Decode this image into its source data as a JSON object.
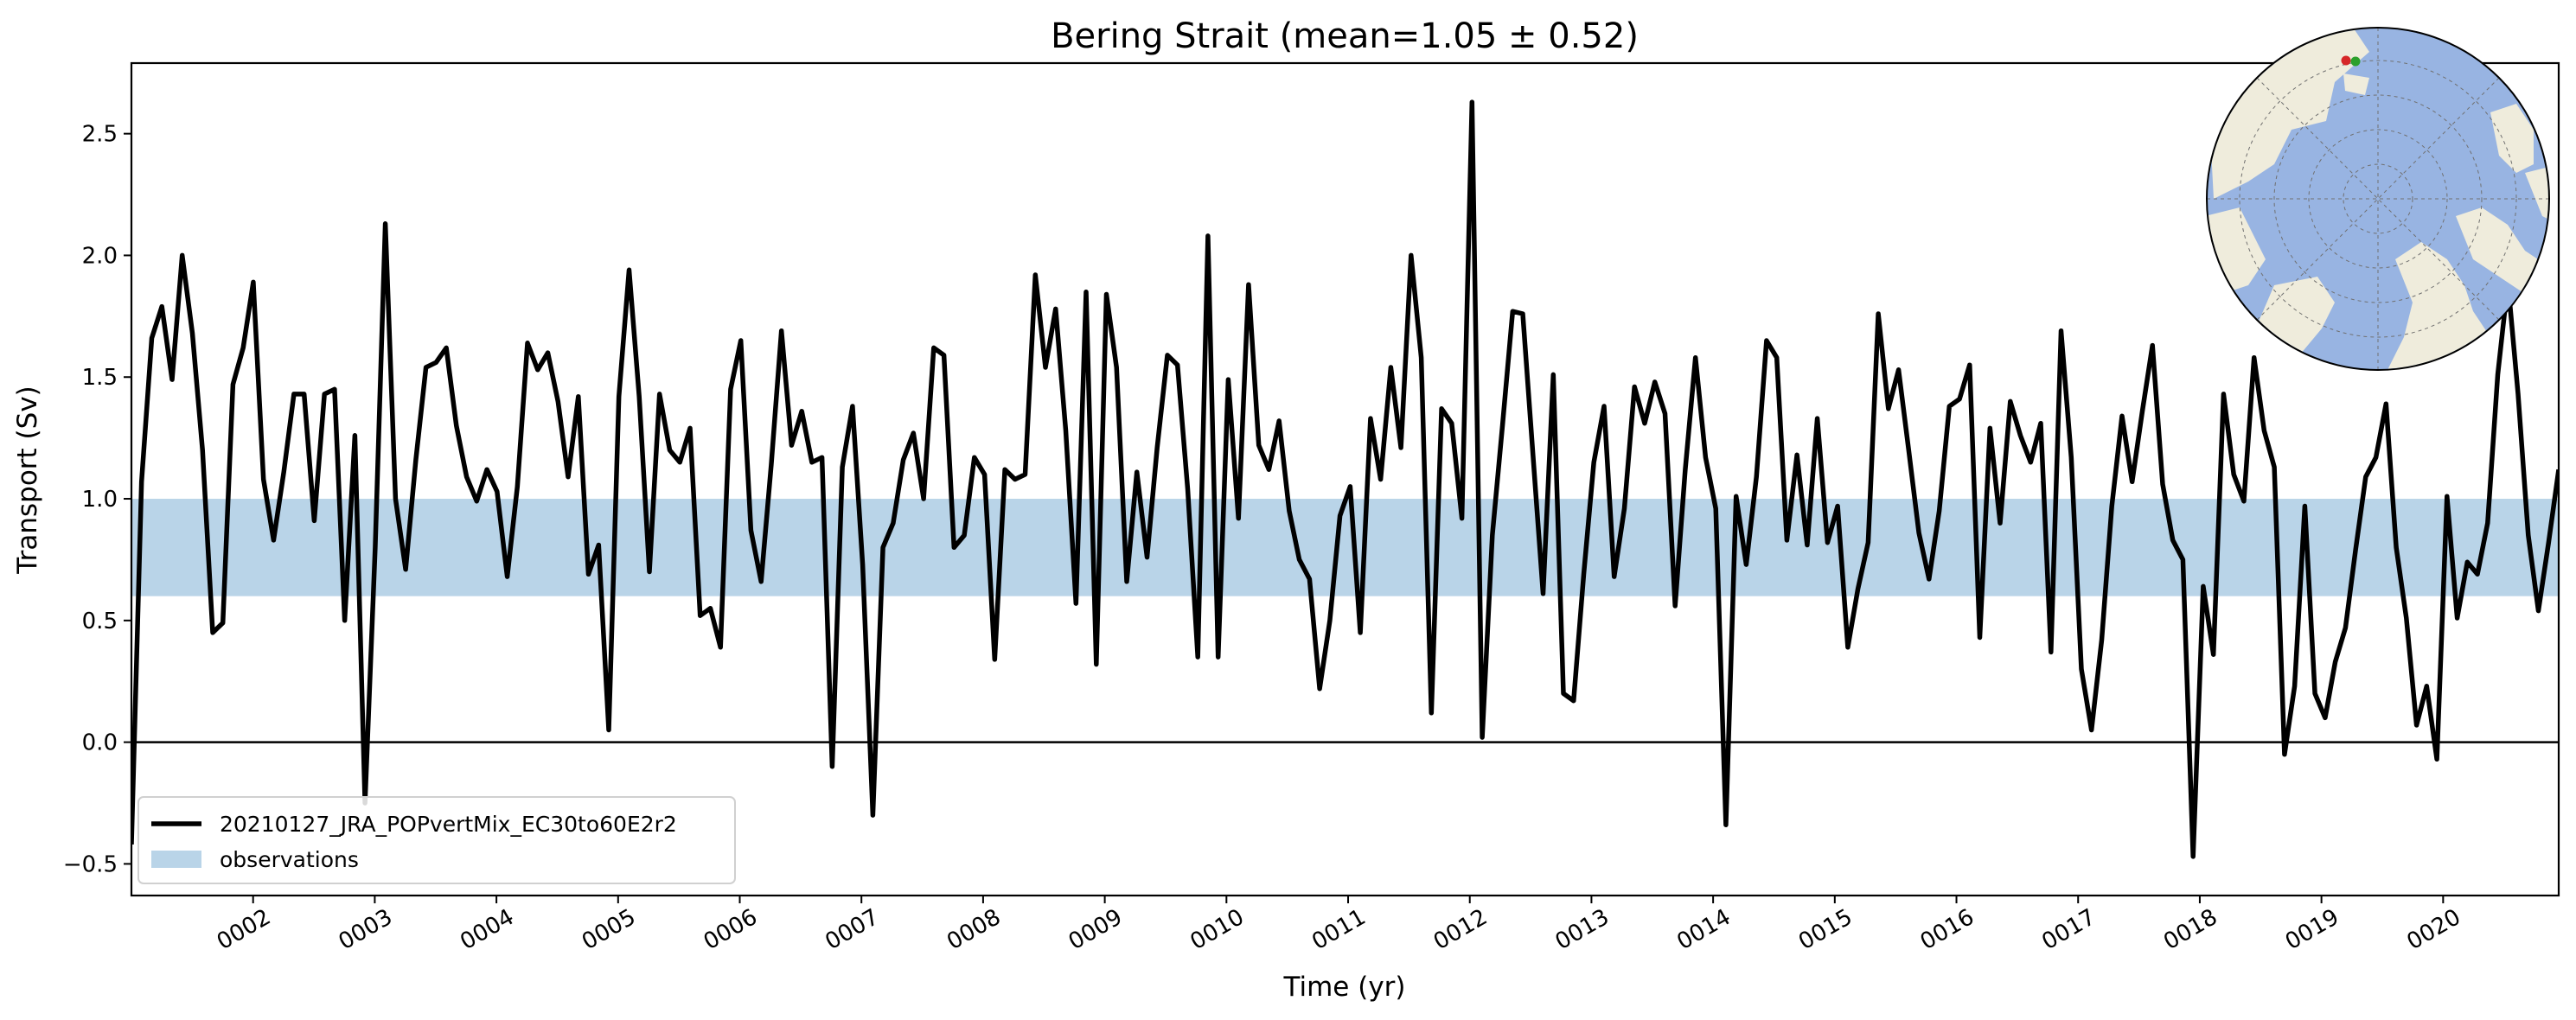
{
  "chart_data": {
    "type": "line",
    "title": "Bering Strait (mean=1.05 ± 0.52)",
    "xlabel": "Time (yr)",
    "ylabel": "Transport (Sv)",
    "xlim": [
      1.0,
      20.95
    ],
    "ylim": [
      -0.63,
      2.79
    ],
    "grid": false,
    "legend_position": "lower-left",
    "x_ticks": [
      2,
      3,
      4,
      5,
      6,
      7,
      8,
      9,
      10,
      11,
      12,
      13,
      14,
      15,
      16,
      17,
      18,
      19,
      20
    ],
    "x_tick_labels": [
      "0002",
      "0003",
      "0004",
      "0005",
      "0006",
      "0007",
      "0008",
      "0009",
      "0010",
      "0011",
      "0012",
      "0013",
      "0014",
      "0015",
      "0016",
      "0017",
      "0018",
      "0019",
      "0020"
    ],
    "y_ticks": [
      -0.5,
      0.0,
      0.5,
      1.0,
      1.5,
      2.0,
      2.5
    ],
    "y_tick_labels": [
      "−0.5",
      "0.0",
      "0.5",
      "1.0",
      "1.5",
      "2.0",
      "2.5"
    ],
    "zero_line": 0.0,
    "observations_band": {
      "name": "observations",
      "range": [
        0.6,
        1.0
      ],
      "color": "#b9d4e8"
    },
    "series": [
      {
        "name": "20210127_JRA_POPvertMix_EC30to60E2r2",
        "color": "#000000",
        "values": [
          -0.42,
          1.07,
          1.66,
          1.79,
          1.49,
          2.0,
          1.68,
          1.2,
          0.45,
          0.49,
          1.47,
          1.62,
          1.89,
          1.08,
          0.83,
          1.11,
          1.43,
          1.43,
          0.91,
          1.43,
          1.45,
          0.5,
          1.26,
          -0.25,
          0.8,
          2.13,
          1.0,
          0.71,
          1.16,
          1.54,
          1.56,
          1.62,
          1.3,
          1.09,
          0.99,
          1.12,
          1.03,
          0.68,
          1.05,
          1.64,
          1.53,
          1.6,
          1.4,
          1.09,
          1.42,
          0.69,
          0.81,
          0.05,
          1.42,
          1.94,
          1.42,
          0.7,
          1.43,
          1.2,
          1.15,
          1.29,
          0.52,
          0.55,
          0.39,
          1.45,
          1.65,
          0.87,
          0.66,
          1.14,
          1.69,
          1.22,
          1.36,
          1.15,
          1.17,
          -0.1,
          1.13,
          1.38,
          0.73,
          -0.3,
          0.8,
          0.9,
          1.16,
          1.27,
          1.0,
          1.62,
          1.59,
          0.8,
          0.85,
          1.17,
          1.1,
          0.34,
          1.12,
          1.08,
          1.1,
          1.92,
          1.54,
          1.78,
          1.28,
          0.57,
          1.85,
          0.32,
          1.84,
          1.54,
          0.66,
          1.11,
          0.76,
          1.21,
          1.59,
          1.55,
          1.04,
          0.35,
          2.08,
          0.35,
          1.49,
          0.92,
          1.88,
          1.22,
          1.12,
          1.32,
          0.95,
          0.75,
          0.67,
          0.22,
          0.5,
          0.93,
          1.05,
          0.45,
          1.33,
          1.08,
          1.54,
          1.21,
          2.0,
          1.58,
          0.12,
          1.37,
          1.31,
          0.92,
          2.63,
          0.02,
          0.85,
          1.3,
          1.77,
          1.76,
          1.18,
          0.61,
          1.51,
          0.2,
          0.17,
          0.69,
          1.15,
          1.38,
          0.68,
          0.96,
          1.46,
          1.31,
          1.48,
          1.35,
          0.56,
          1.12,
          1.58,
          1.17,
          0.96,
          -0.34,
          1.01,
          0.73,
          1.09,
          1.65,
          1.58,
          0.83,
          1.18,
          0.81,
          1.33,
          0.82,
          0.97,
          0.39,
          0.63,
          0.82,
          1.76,
          1.37,
          1.53,
          1.2,
          0.86,
          0.67,
          0.95,
          1.38,
          1.41,
          1.55,
          0.43,
          1.29,
          0.9,
          1.4,
          1.26,
          1.15,
          1.31,
          0.37,
          1.69,
          1.17,
          0.3,
          0.05,
          0.42,
          0.97,
          1.34,
          1.07,
          1.36,
          1.63,
          1.06,
          0.83,
          0.75,
          -0.47,
          0.64,
          0.36,
          1.43,
          1.1,
          0.99,
          1.58,
          1.28,
          1.13,
          -0.05,
          0.23,
          0.97,
          0.2,
          0.1,
          0.33,
          0.47,
          0.79,
          1.09,
          1.17,
          1.39,
          0.8,
          0.51,
          0.07,
          0.23,
          -0.07,
          1.01,
          0.51,
          0.74,
          0.69,
          0.9,
          1.51,
          1.89,
          1.43,
          0.85,
          0.54,
          0.82,
          1.12
        ]
      }
    ],
    "inset_map": {
      "projection": "north-polar-stereographic",
      "ocean_color": "#98b4e2",
      "land_color": "#efecdc",
      "markers": [
        {
          "color": "#d62728"
        },
        {
          "color": "#2ca02c"
        }
      ]
    }
  }
}
